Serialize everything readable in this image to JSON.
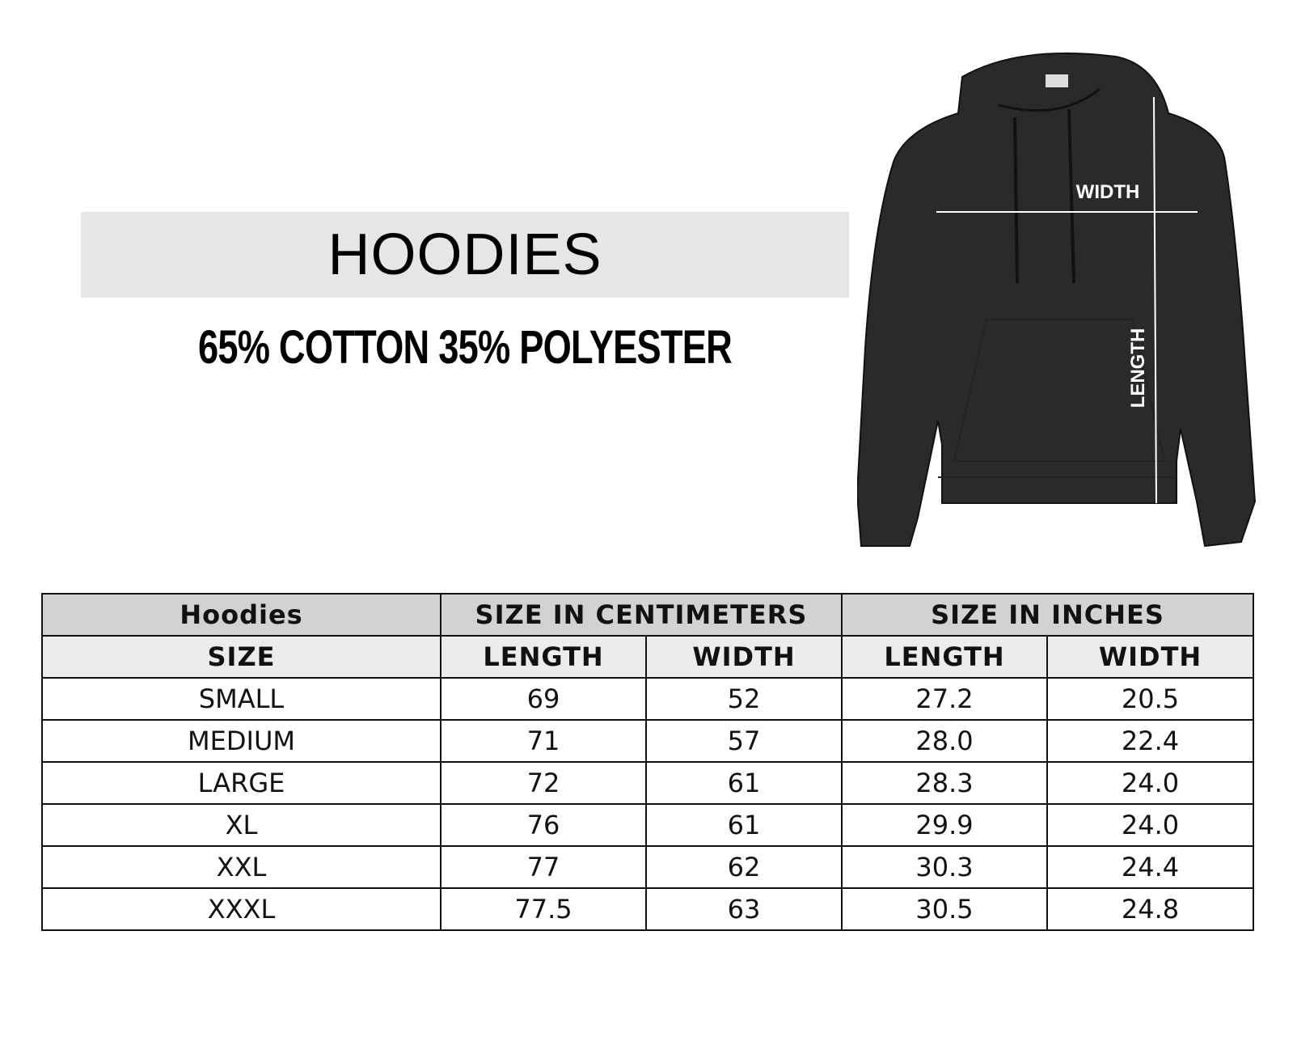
{
  "title": "HOODIES",
  "subtitle": "65% COTTON 35% POLYESTER",
  "diagram": {
    "width_label": "WIDTH",
    "length_label": "LENGTH",
    "garment_color": "#2a2a2a"
  },
  "table": {
    "header_top": [
      "Hoodies",
      "SIZE IN CENTIMETERS",
      "SIZE IN INCHES"
    ],
    "header_sub": [
      "SIZE",
      "LENGTH",
      "WIDTH",
      "LENGTH",
      "WIDTH"
    ],
    "rows": [
      [
        "SMALL",
        "69",
        "52",
        "27.2",
        "20.5"
      ],
      [
        "MEDIUM",
        "71",
        "57",
        "28.0",
        "22.4"
      ],
      [
        "LARGE",
        "72",
        "61",
        "28.3",
        "24.0"
      ],
      [
        "XL",
        "76",
        "61",
        "29.9",
        "24.0"
      ],
      [
        "XXL",
        "77",
        "62",
        "30.3",
        "24.4"
      ],
      [
        "XXXL",
        "77.5",
        "63",
        "30.5",
        "24.8"
      ]
    ]
  }
}
